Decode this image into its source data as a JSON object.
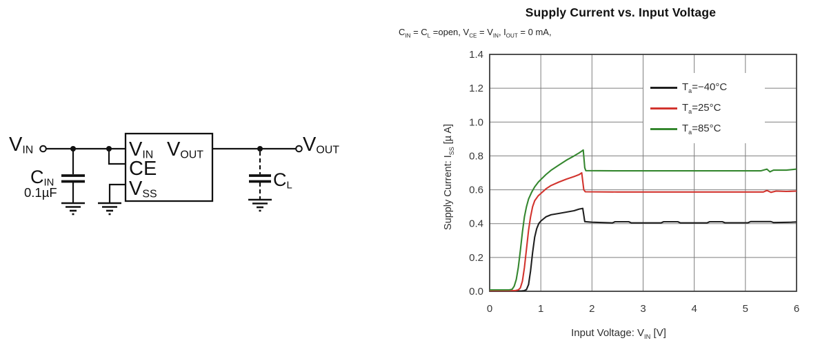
{
  "circuit": {
    "input_label": {
      "main": "V",
      "sub": "IN"
    },
    "input_cap_label": {
      "main": "C",
      "sub": "IN"
    },
    "input_cap_value": "0.1µF",
    "block_pins": {
      "vin": {
        "main": "V",
        "sub": "IN"
      },
      "vout": {
        "main": "V",
        "sub": "OUT"
      },
      "ce": {
        "main": "CE",
        "sub": ""
      },
      "vss": {
        "main": "V",
        "sub": "SS"
      }
    },
    "load_cap_label": {
      "main": "C",
      "sub": "L"
    },
    "output_label": {
      "main": "V",
      "sub": "OUT"
    }
  },
  "chart": {
    "title": "Supply Current vs. Input Voltage",
    "conditions_text": "CIN = CL =open, VCE = VIN, IOUT = 0 mA,",
    "conditions_segments": [
      {
        "text": "C",
        "sub": "IN"
      },
      {
        "text": " = C",
        "sub": "L"
      },
      {
        "text": " =open, V",
        "sub": "CE"
      },
      {
        "text": " = V",
        "sub": "IN"
      },
      {
        "text": ", I",
        "sub": "OUT"
      },
      {
        "text": " = 0 mA,",
        "sub": ""
      }
    ],
    "y_axis": {
      "pre": "Supply Current: I",
      "sub": "SS",
      "post": " [µ A]"
    },
    "x_axis": {
      "pre": "Input Voltage: V",
      "sub": "IN",
      "post": " [V]"
    }
  },
  "chart_data": {
    "type": "line",
    "title": "Supply Current vs. Input Voltage",
    "xlabel": "Input Voltage: VIN [V]",
    "ylabel": "Supply Current: ISS [µA]",
    "xlim": [
      0,
      6
    ],
    "ylim": [
      0,
      1.4
    ],
    "x_ticks": [
      "0",
      "1",
      "2",
      "3",
      "4",
      "5",
      "6"
    ],
    "y_ticks": [
      "0.0",
      "0.2",
      "0.4",
      "0.6",
      "0.8",
      "1.0",
      "1.2",
      "1.4"
    ],
    "grid": true,
    "legend_position": "upper right",
    "series": [
      {
        "id": "ta_m40",
        "name": "Ta=-40°C",
        "label": {
          "pre": "T",
          "sub": "a",
          "post": "=−40°C"
        },
        "color": "#1f1f1f",
        "points": [
          [
            0,
            0.002
          ],
          [
            0.62,
            0.002
          ],
          [
            0.68,
            0.004
          ],
          [
            0.72,
            0.01
          ],
          [
            0.76,
            0.04
          ],
          [
            0.8,
            0.12
          ],
          [
            0.84,
            0.23
          ],
          [
            0.88,
            0.32
          ],
          [
            0.92,
            0.37
          ],
          [
            0.96,
            0.4
          ],
          [
            1.0,
            0.415
          ],
          [
            1.1,
            0.44
          ],
          [
            1.2,
            0.452
          ],
          [
            1.35,
            0.46
          ],
          [
            1.5,
            0.468
          ],
          [
            1.65,
            0.476
          ],
          [
            1.75,
            0.486
          ],
          [
            1.82,
            0.49
          ],
          [
            1.86,
            0.412
          ],
          [
            2.0,
            0.408
          ],
          [
            2.4,
            0.404
          ],
          [
            2.45,
            0.411
          ],
          [
            2.72,
            0.411
          ],
          [
            2.77,
            0.404
          ],
          [
            3.35,
            0.404
          ],
          [
            3.4,
            0.411
          ],
          [
            3.68,
            0.411
          ],
          [
            3.73,
            0.404
          ],
          [
            4.25,
            0.404
          ],
          [
            4.3,
            0.411
          ],
          [
            4.55,
            0.411
          ],
          [
            4.6,
            0.405
          ],
          [
            5.05,
            0.405
          ],
          [
            5.1,
            0.412
          ],
          [
            5.5,
            0.412
          ],
          [
            5.55,
            0.406
          ],
          [
            5.9,
            0.408
          ],
          [
            6,
            0.41
          ]
        ]
      },
      {
        "id": "ta_25",
        "name": "Ta=25°C",
        "label": {
          "pre": "T",
          "sub": "a",
          "post": "=25°C"
        },
        "color": "#d2342e",
        "points": [
          [
            0,
            0.004
          ],
          [
            0.5,
            0.004
          ],
          [
            0.56,
            0.008
          ],
          [
            0.6,
            0.02
          ],
          [
            0.64,
            0.06
          ],
          [
            0.68,
            0.14
          ],
          [
            0.72,
            0.25
          ],
          [
            0.76,
            0.36
          ],
          [
            0.8,
            0.44
          ],
          [
            0.84,
            0.5
          ],
          [
            0.88,
            0.535
          ],
          [
            0.95,
            0.565
          ],
          [
            1.0,
            0.578
          ],
          [
            1.1,
            0.605
          ],
          [
            1.2,
            0.625
          ],
          [
            1.35,
            0.645
          ],
          [
            1.5,
            0.663
          ],
          [
            1.65,
            0.678
          ],
          [
            1.75,
            0.69
          ],
          [
            1.8,
            0.7
          ],
          [
            1.84,
            0.6
          ],
          [
            1.87,
            0.588
          ],
          [
            2.5,
            0.587
          ],
          [
            3.5,
            0.587
          ],
          [
            4.5,
            0.587
          ],
          [
            5.35,
            0.587
          ],
          [
            5.42,
            0.596
          ],
          [
            5.5,
            0.585
          ],
          [
            5.6,
            0.592
          ],
          [
            5.8,
            0.59
          ],
          [
            6,
            0.592
          ]
        ]
      },
      {
        "id": "ta_85",
        "name": "Ta=85°C",
        "label": {
          "pre": "T",
          "sub": "a",
          "post": "=85°C"
        },
        "color": "#35872f",
        "points": [
          [
            0,
            0.008
          ],
          [
            0.38,
            0.008
          ],
          [
            0.44,
            0.012
          ],
          [
            0.48,
            0.03
          ],
          [
            0.52,
            0.07
          ],
          [
            0.56,
            0.14
          ],
          [
            0.6,
            0.24
          ],
          [
            0.64,
            0.35
          ],
          [
            0.68,
            0.44
          ],
          [
            0.72,
            0.5
          ],
          [
            0.76,
            0.545
          ],
          [
            0.82,
            0.585
          ],
          [
            0.88,
            0.617
          ],
          [
            0.95,
            0.645
          ],
          [
            1.0,
            0.66
          ],
          [
            1.1,
            0.69
          ],
          [
            1.2,
            0.715
          ],
          [
            1.35,
            0.745
          ],
          [
            1.5,
            0.775
          ],
          [
            1.65,
            0.8
          ],
          [
            1.75,
            0.818
          ],
          [
            1.8,
            0.828
          ],
          [
            1.83,
            0.835
          ],
          [
            1.86,
            0.73
          ],
          [
            1.88,
            0.713
          ],
          [
            2.5,
            0.712
          ],
          [
            3.5,
            0.712
          ],
          [
            4.5,
            0.712
          ],
          [
            5.3,
            0.712
          ],
          [
            5.42,
            0.722
          ],
          [
            5.48,
            0.706
          ],
          [
            5.55,
            0.716
          ],
          [
            5.8,
            0.716
          ],
          [
            6,
            0.722
          ]
        ]
      }
    ]
  }
}
